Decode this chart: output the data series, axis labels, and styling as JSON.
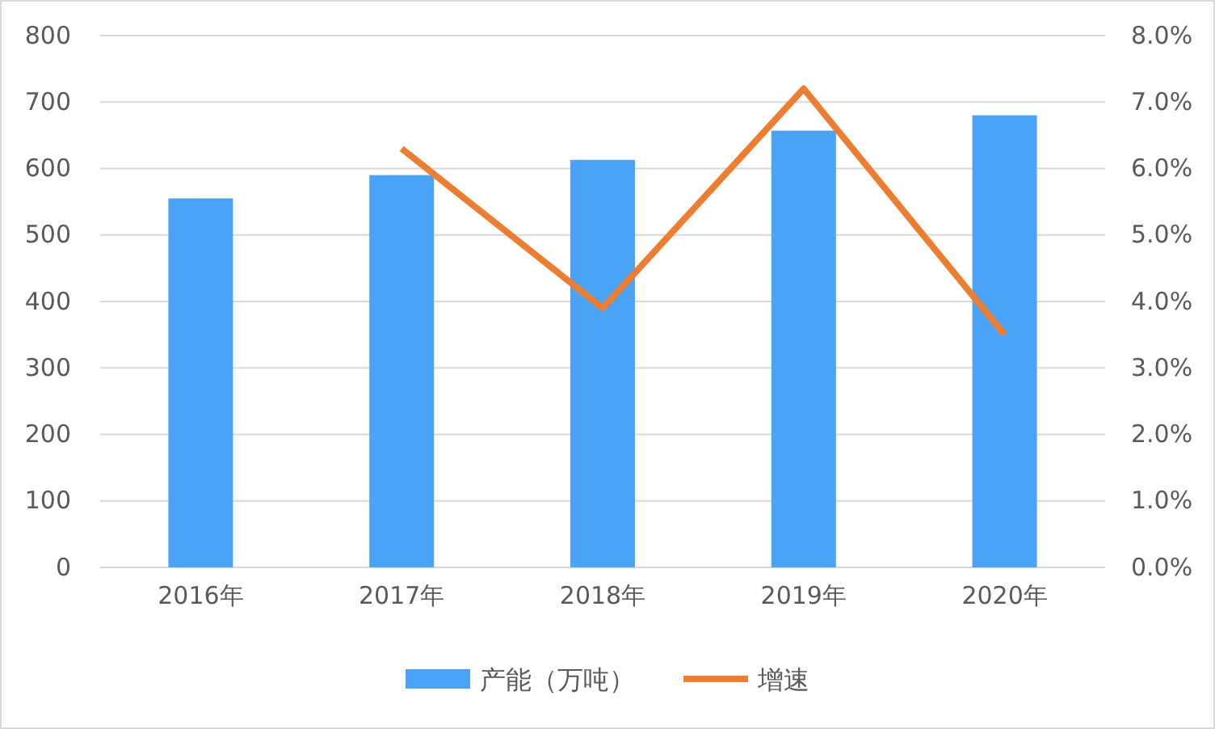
{
  "chart_data": {
    "type": "bar",
    "categories": [
      "2016年",
      "2017年",
      "2018年",
      "2019年",
      "2020年"
    ],
    "series": [
      {
        "name": "产能（万吨）",
        "color": "#4aa3f7",
        "values": [
          555,
          590,
          613,
          657,
          680
        ]
      },
      {
        "name": "增速",
        "type": "line",
        "axis": "y2",
        "color": "#ed7d31",
        "values": [
          null,
          6.3,
          3.9,
          7.2,
          3.5
        ]
      }
    ],
    "ylim": [
      0,
      800
    ],
    "yticks": [
      0,
      100,
      200,
      300,
      400,
      500,
      600,
      700,
      800
    ],
    "y2lim": [
      0,
      8
    ],
    "y2ticks": [
      {
        "value": 0,
        "label": "0.0%"
      },
      {
        "value": 1,
        "label": "1.0%"
      },
      {
        "value": 2,
        "label": "2.0%"
      },
      {
        "value": 3,
        "label": "3.0%"
      },
      {
        "value": 4,
        "label": "4.0%"
      },
      {
        "value": 5,
        "label": "5.0%"
      },
      {
        "value": 6,
        "label": "6.0%"
      },
      {
        "value": 7,
        "label": "7.0%"
      },
      {
        "value": 8,
        "label": "8.0%"
      }
    ],
    "grid": "y",
    "legend": "bottom",
    "marker": "none",
    "line_style": "solid"
  }
}
